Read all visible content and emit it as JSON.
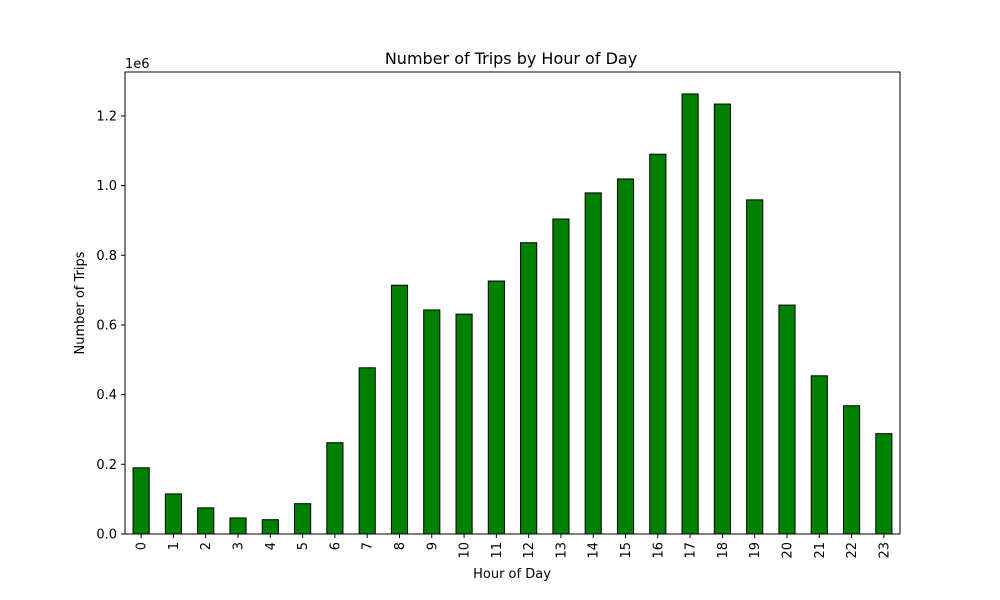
{
  "chart_data": {
    "type": "bar",
    "title": "Number of Trips by Hour of Day",
    "xlabel": "Hour of Day",
    "ylabel": "Number of Trips",
    "y_offset_label": "1e6",
    "y_scale": 1000000,
    "categories": [
      "0",
      "1",
      "2",
      "3",
      "4",
      "5",
      "6",
      "7",
      "8",
      "9",
      "10",
      "11",
      "12",
      "13",
      "14",
      "15",
      "16",
      "17",
      "18",
      "19",
      "20",
      "21",
      "22",
      "23"
    ],
    "values": [
      190000,
      115000,
      75000,
      46000,
      41000,
      87000,
      262000,
      477000,
      714000,
      643000,
      631000,
      726000,
      836000,
      904000,
      979000,
      1019000,
      1090000,
      1263000,
      1234000,
      959000,
      657000,
      454000,
      368000,
      288000
    ],
    "ylim": [
      0,
      1326000
    ],
    "yticks": [
      0,
      200000,
      400000,
      600000,
      800000,
      1000000,
      1200000
    ],
    "ytick_labels": [
      "0.0",
      "0.2",
      "0.4",
      "0.6",
      "0.8",
      "1.0",
      "1.2"
    ],
    "bar_color": "#008000",
    "edge_color": "#000000",
    "grid": false,
    "legend": "none"
  }
}
